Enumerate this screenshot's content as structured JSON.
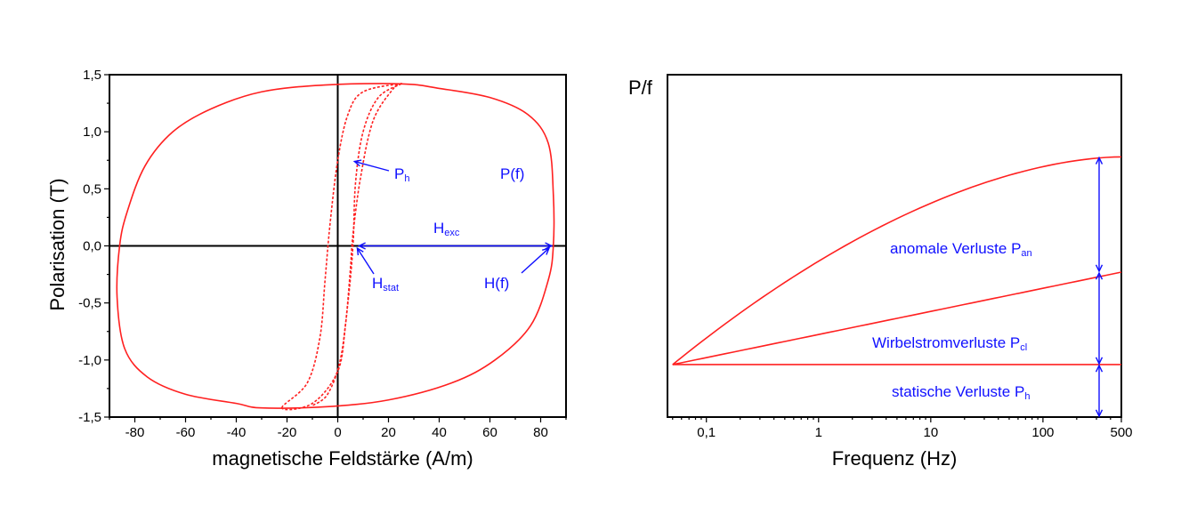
{
  "chart_data": [
    {
      "type": "line",
      "title": "",
      "xlabel": "magnetische Feldstärke (A/m)",
      "ylabel": "Polarisation (T)",
      "xlim": [
        -90,
        90
      ],
      "ylim": [
        -1.5,
        1.5
      ],
      "x_ticks": [
        "-80",
        "-60",
        "-40",
        "-20",
        "0",
        "20",
        "40",
        "60",
        "80"
      ],
      "y_ticks": [
        "-1,5",
        "-1,0",
        "-0,5",
        "0,0",
        "0,5",
        "1,0",
        "1,5"
      ],
      "series": [
        {
          "name": "P(f)",
          "style": "solid",
          "points": [
            [
              25,
              1.42
            ],
            [
              -5,
              1.41
            ],
            [
              -30,
              1.35
            ],
            [
              -50,
              1.2
            ],
            [
              -65,
              1.0
            ],
            [
              -76,
              0.7
            ],
            [
              -83,
              0.3
            ],
            [
              -86,
              0.0
            ],
            [
              -87,
              -0.45
            ],
            [
              -84,
              -0.9
            ],
            [
              -75,
              -1.15
            ],
            [
              -60,
              -1.3
            ],
            [
              -40,
              -1.38
            ],
            [
              -30,
              -1.42
            ],
            [
              -5,
              -1.41
            ],
            [
              20,
              -1.35
            ],
            [
              45,
              -1.2
            ],
            [
              62,
              -1.0
            ],
            [
              76,
              -0.7
            ],
            [
              83,
              -0.3
            ],
            [
              85,
              0.0
            ],
            [
              85,
              0.45
            ],
            [
              83,
              0.9
            ],
            [
              75,
              1.15
            ],
            [
              60,
              1.3
            ],
            [
              40,
              1.38
            ],
            [
              25,
              1.42
            ]
          ]
        },
        {
          "name": "P_h",
          "style": "dashed",
          "points": [
            [
              -22,
              -1.42
            ],
            [
              -12,
              -1.2
            ],
            [
              -7,
              -0.8
            ],
            [
              -5,
              -0.3
            ],
            [
              -3,
              0.2
            ],
            [
              0,
              0.75
            ],
            [
              4,
              1.15
            ],
            [
              10,
              1.35
            ],
            [
              25,
              1.42
            ],
            [
              22,
              1.38
            ],
            [
              14,
              1.1
            ],
            [
              9,
              0.6
            ],
            [
              6,
              0.1
            ],
            [
              5,
              -0.2
            ],
            [
              3,
              -0.7
            ],
            [
              0,
              -1.1
            ],
            [
              -10,
              -1.38
            ],
            [
              -22,
              -1.42
            ]
          ]
        },
        {
          "name": "",
          "style": "dashed",
          "points": [
            [
              25,
              1.42
            ],
            [
              16,
              1.3
            ],
            [
              10,
              1.0
            ],
            [
              7,
              0.55
            ],
            [
              6,
              0.0
            ],
            [
              4,
              -0.5
            ],
            [
              1,
              -1.0
            ],
            [
              -4,
              -1.3
            ],
            [
              -10,
              -1.4
            ]
          ]
        }
      ],
      "annotations": [
        {
          "main": "P",
          "sub": "h"
        },
        {
          "main": "P(f)",
          "sub": ""
        },
        {
          "main": "H",
          "sub": "exc"
        },
        {
          "main": "H",
          "sub": "stat"
        },
        {
          "main": "H(f)",
          "sub": ""
        }
      ],
      "grid": false,
      "zero_lines": true
    },
    {
      "type": "line",
      "title": "",
      "xlabel": "Frequenz (Hz)",
      "ylabel": "P/f",
      "xscale": "log",
      "xlim": [
        0.045,
        500
      ],
      "ylim": [
        0,
        3
      ],
      "x_ticks": [
        "0,1",
        "1",
        "10",
        "100",
        "500"
      ],
      "series": [
        {
          "name": "",
          "x": [
            0.05,
            500
          ],
          "y": [
            0.46,
            0.46
          ],
          "shape": "flat"
        },
        {
          "name": "",
          "x": [
            0.05,
            500
          ],
          "y": [
            0.46,
            1.27
          ],
          "shape": "linear"
        },
        {
          "name": "",
          "x": [
            0.05,
            500
          ],
          "y": [
            0.46,
            2.28
          ],
          "shape": "concave"
        }
      ],
      "annotations": [
        {
          "main": "anomale Verluste P",
          "sub": "an"
        },
        {
          "main": "Wirbelstromverluste P",
          "sub": "cl"
        },
        {
          "main": "statische Verluste P",
          "sub": "h"
        }
      ],
      "grid": false
    }
  ]
}
